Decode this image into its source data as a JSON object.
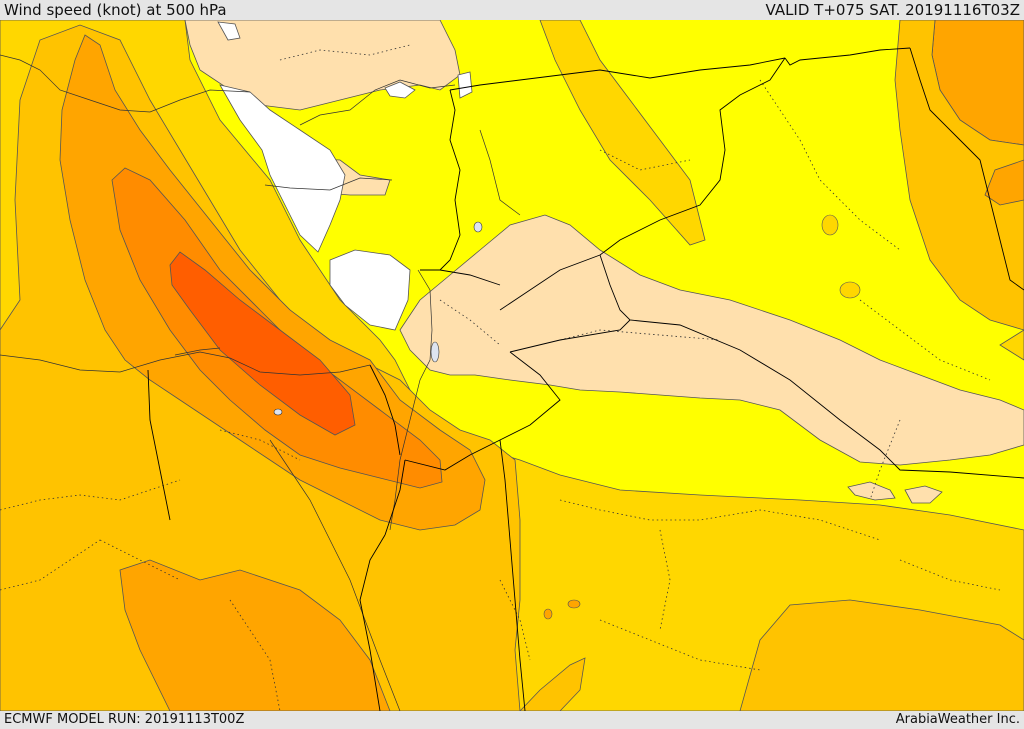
{
  "header": {
    "title": "Wind speed (knot) at 500 hPa",
    "valid": "VALID T+075 SAT. 20191116T03Z"
  },
  "footer": {
    "model_run": "ECMWF MODEL RUN: 20191113T00Z",
    "credit": "ArabiaWeather Inc."
  },
  "colors": {
    "white": "#ffffff",
    "cream": "#ffe0ad",
    "yellow": "#ffff00",
    "gold": "#ffd700",
    "amber": "#ffc300",
    "orange": "#ffa500",
    "dark_orange": "#ff8c00",
    "red_orange": "#ff5e00",
    "contour": "#555555",
    "border": "#000000"
  }
}
